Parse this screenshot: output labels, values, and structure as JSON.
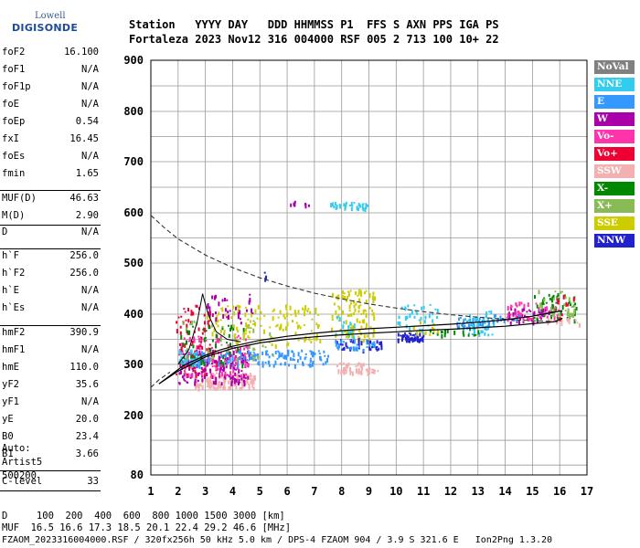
{
  "logo": {
    "top": "Lowell",
    "bottom": "DIGISONDE"
  },
  "header": {
    "line1": "Station   YYYY DAY   DDD HHMMSS P1  FFS S AXN PPS IGA PS",
    "line2": "Fortaleza 2023 Nov12 316 004000 RSF 005 2 713 100 10+ 22"
  },
  "params": [
    {
      "name": "foF2",
      "value": "16.100"
    },
    {
      "name": "foF1",
      "value": "N/A"
    },
    {
      "name": "foF1p",
      "value": "N/A"
    },
    {
      "name": "foE",
      "value": "N/A"
    },
    {
      "name": "foEp",
      "value": "0.54"
    },
    {
      "name": "fxI",
      "value": "16.45"
    },
    {
      "name": "foEs",
      "value": "N/A"
    },
    {
      "name": "fmin",
      "value": "1.65"
    },
    {
      "name": "MUF(D)",
      "value": "46.63"
    },
    {
      "name": "M(D)",
      "value": "2.90"
    },
    {
      "name": "D",
      "value": "N/A"
    },
    {
      "name": "h`F",
      "value": "256.0"
    },
    {
      "name": "h`F2",
      "value": "256.0"
    },
    {
      "name": "h`E",
      "value": "N/A"
    },
    {
      "name": "h`Es",
      "value": "N/A"
    },
    {
      "name": "hmF2",
      "value": "390.9"
    },
    {
      "name": "hmF1",
      "value": "N/A"
    },
    {
      "name": "hmE",
      "value": "110.0"
    },
    {
      "name": "yF2",
      "value": "35.6"
    },
    {
      "name": "yF1",
      "value": "N/A"
    },
    {
      "name": "yE",
      "value": "20.0"
    },
    {
      "name": "B0",
      "value": "23.4"
    },
    {
      "name": "B1",
      "value": "3.66"
    },
    {
      "name": "C-level",
      "value": "33"
    }
  ],
  "auto": {
    "line1": "Auto:",
    "line2": "Artist5",
    "line3": "500200"
  },
  "legend": [
    {
      "label": "NoVal",
      "color": "#808080"
    },
    {
      "label": "NNE",
      "color": "#33ccee"
    },
    {
      "label": "E",
      "color": "#3399ff"
    },
    {
      "label": "W",
      "color": "#aa00aa"
    },
    {
      "label": "Vo-",
      "color": "#ff33aa"
    },
    {
      "label": "Vo+",
      "color": "#ee0033"
    },
    {
      "label": "SSW",
      "color": "#f4b0b0"
    },
    {
      "label": "X-",
      "color": "#008800"
    },
    {
      "label": "X+",
      "color": "#88bb55"
    },
    {
      "label": "SSE",
      "color": "#cccc00"
    },
    {
      "label": "NNW",
      "color": "#2222cc"
    }
  ],
  "footer": {
    "line1": "D     100  200  400  600  800 1000 1500 3000 [km]",
    "line2": "MUF  16.5 16.6 17.3 18.5 20.1 22.4 29.2 46.6 [MHz]",
    "line3": "FZAOM_2023316004000.RSF / 320fx256h 50 kHz 5.0 km / DPS-4 FZAOM 904 / 3.9 S 321.6 E   Ion2Png 1.3.20"
  },
  "chart_data": {
    "type": "scatter",
    "xlim": [
      1,
      17
    ],
    "ylim": [
      80,
      900
    ],
    "xticks": [
      1,
      2,
      3,
      4,
      5,
      6,
      7,
      8,
      9,
      10,
      11,
      12,
      13,
      14,
      15,
      16,
      17
    ],
    "yticks": [
      80,
      200,
      300,
      400,
      500,
      600,
      700,
      800,
      900
    ],
    "grid": true,
    "legend_placement": "right",
    "clusters": [
      {
        "cls": "SSW",
        "x": [
          2.6,
          4.8
        ],
        "y": [
          255,
          285
        ],
        "n": 160
      },
      {
        "cls": "W",
        "x": [
          2.0,
          4.6
        ],
        "y": [
          265,
          330
        ],
        "n": 170
      },
      {
        "cls": "Vo-",
        "x": [
          2.0,
          4.6
        ],
        "y": [
          280,
          360
        ],
        "n": 110
      },
      {
        "cls": "Vo+",
        "x": [
          1.9,
          3.4
        ],
        "y": [
          280,
          420
        ],
        "n": 70
      },
      {
        "cls": "E",
        "x": [
          2.2,
          7.5
        ],
        "y": [
          300,
          330
        ],
        "n": 150
      },
      {
        "cls": "NNE",
        "x": [
          2.0,
          2.8
        ],
        "y": [
          300,
          330
        ],
        "n": 35
      },
      {
        "cls": "X-",
        "x": [
          2.0,
          4.5
        ],
        "y": [
          300,
          380
        ],
        "n": 45
      },
      {
        "cls": "X+",
        "x": [
          2.0,
          5.5
        ],
        "y": [
          310,
          390
        ],
        "n": 40
      },
      {
        "cls": "SSE",
        "x": [
          3.0,
          7.2
        ],
        "y": [
          340,
          420
        ],
        "n": 120
      },
      {
        "cls": "SSE",
        "x": [
          7.6,
          9.2
        ],
        "y": [
          350,
          450
        ],
        "n": 110
      },
      {
        "cls": "SSW",
        "x": [
          7.8,
          9.3
        ],
        "y": [
          285,
          305
        ],
        "n": 55
      },
      {
        "cls": "W",
        "x": [
          3.0,
          4.8
        ],
        "y": [
          380,
          440
        ],
        "n": 35
      },
      {
        "cls": "NNW",
        "x": [
          7.8,
          9.5
        ],
        "y": [
          330,
          355
        ],
        "n": 35
      },
      {
        "cls": "E",
        "x": [
          7.6,
          9.2
        ],
        "y": [
          330,
          350
        ],
        "n": 30
      },
      {
        "cls": "NNE",
        "x": [
          7.7,
          8.5
        ],
        "y": [
          355,
          400
        ],
        "n": 18
      },
      {
        "cls": "NNE",
        "x": [
          10.0,
          11.5
        ],
        "y": [
          370,
          420
        ],
        "n": 35
      },
      {
        "cls": "NNW",
        "x": [
          10.0,
          11.0
        ],
        "y": [
          350,
          365
        ],
        "n": 45
      },
      {
        "cls": "E",
        "x": [
          12.2,
          13.4
        ],
        "y": [
          375,
          395
        ],
        "n": 50
      },
      {
        "cls": "NNE",
        "x": [
          12.5,
          13.6
        ],
        "y": [
          360,
          410
        ],
        "n": 40
      },
      {
        "cls": "X-",
        "x": [
          11.2,
          13.0
        ],
        "y": [
          360,
          375
        ],
        "n": 20
      },
      {
        "cls": "SSE",
        "x": [
          10.5,
          11.5
        ],
        "y": [
          360,
          390
        ],
        "n": 14
      },
      {
        "cls": "W",
        "x": [
          14.1,
          15.8
        ],
        "y": [
          385,
          415
        ],
        "n": 55
      },
      {
        "cls": "Vo-",
        "x": [
          14.0,
          16.0
        ],
        "y": [
          390,
          425
        ],
        "n": 45
      },
      {
        "cls": "X-",
        "x": [
          15.0,
          16.6
        ],
        "y": [
          390,
          445
        ],
        "n": 45
      },
      {
        "cls": "X+",
        "x": [
          15.2,
          16.6
        ],
        "y": [
          400,
          450
        ],
        "n": 35
      },
      {
        "cls": "SSW",
        "x": [
          15.5,
          16.7
        ],
        "y": [
          380,
          395
        ],
        "n": 14
      },
      {
        "cls": "Vo+",
        "x": [
          15.8,
          16.5
        ],
        "y": [
          390,
          440
        ],
        "n": 10
      },
      {
        "cls": "E",
        "x": [
          13.5,
          14.5
        ],
        "y": [
          385,
          400
        ],
        "n": 15
      },
      {
        "cls": "W",
        "x": [
          6.1,
          6.3
        ],
        "y": [
          618,
          624
        ],
        "n": 5
      },
      {
        "cls": "W",
        "x": [
          6.6,
          6.8
        ],
        "y": [
          616,
          620
        ],
        "n": 4
      },
      {
        "cls": "NNE",
        "x": [
          7.5,
          9.0
        ],
        "y": [
          610,
          622
        ],
        "n": 30
      },
      {
        "cls": "NNW",
        "x": [
          5.1,
          5.2
        ],
        "y": [
          470,
          485
        ],
        "n": 3
      }
    ],
    "solid_curve": [
      [
        1.3,
        262
      ],
      [
        1.8,
        282
      ],
      [
        2.2,
        298
      ],
      [
        2.6,
        308
      ],
      [
        3.0,
        318
      ],
      [
        3.5,
        328
      ],
      [
        4,
        336
      ],
      [
        5,
        348
      ],
      [
        6,
        356
      ],
      [
        7,
        362
      ],
      [
        8,
        367
      ],
      [
        9,
        371
      ],
      [
        10,
        374
      ],
      [
        11,
        377
      ],
      [
        12,
        380
      ],
      [
        13,
        384
      ],
      [
        14,
        389
      ],
      [
        15,
        396
      ],
      [
        15.6,
        402
      ],
      [
        16.1,
        407
      ]
    ],
    "solid_curve_lower": [
      [
        1.3,
        262
      ],
      [
        2,
        287
      ],
      [
        3,
        315
      ],
      [
        4,
        332
      ],
      [
        5,
        343
      ],
      [
        6,
        350
      ],
      [
        7,
        355
      ],
      [
        8,
        359
      ],
      [
        9,
        362
      ],
      [
        10,
        365
      ],
      [
        11,
        368
      ],
      [
        12,
        370
      ],
      [
        13,
        373
      ],
      [
        14,
        376
      ],
      [
        15,
        381
      ],
      [
        15.8,
        385
      ],
      [
        16.1,
        392
      ]
    ],
    "trace_curve": [
      [
        2.0,
        300
      ],
      [
        2.4,
        330
      ],
      [
        2.7,
        385
      ],
      [
        2.9,
        440
      ],
      [
        3.1,
        400
      ],
      [
        3.4,
        365
      ],
      [
        3.8,
        350
      ],
      [
        4.3,
        345
      ]
    ],
    "dashed_curve": [
      [
        1.0,
        595
      ],
      [
        1.5,
        570
      ],
      [
        2,
        548
      ],
      [
        3,
        516
      ],
      [
        4,
        491
      ],
      [
        5,
        471
      ],
      [
        6,
        455
      ],
      [
        7,
        441
      ],
      [
        8,
        430
      ],
      [
        9,
        420
      ],
      [
        10,
        412
      ],
      [
        11,
        405
      ],
      [
        12,
        399
      ],
      [
        13,
        394
      ],
      [
        14,
        390
      ],
      [
        15,
        387
      ],
      [
        16,
        385
      ]
    ],
    "dashed_lower": [
      [
        1.0,
        255
      ],
      [
        1.3,
        270
      ],
      [
        1.7,
        285
      ]
    ]
  }
}
